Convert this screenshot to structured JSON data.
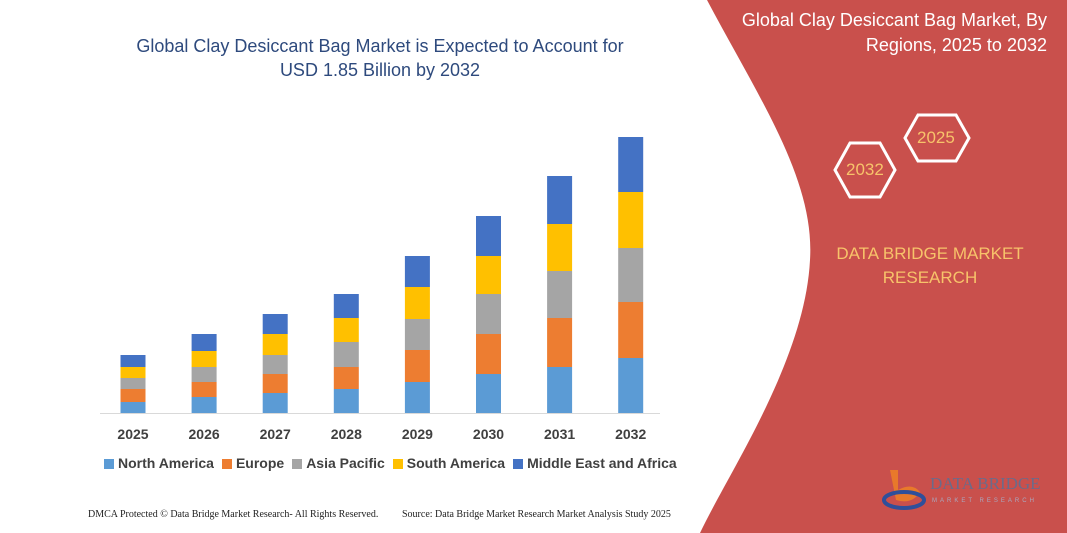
{
  "title": "Global Clay Desiccant Bag Market is Expected to Account for USD 1.85 Billion by 2032",
  "title_line1": "Global Clay Desiccant Bag Market is Expected to Account for",
  "title_line2": "USD 1.85 Billion by 2032",
  "side_panel": {
    "title_line1": "Global Clay Desiccant Bag Market, By",
    "title_line2": "Regions, 2025 to 2032",
    "hex_start": "2025",
    "hex_end": "2032",
    "brand_line1": "DATA BRIDGE MARKET",
    "brand_line2": "RESEARCH",
    "logo_text": "DATA BRIDGE",
    "logo_subtext": "MARKET RESEARCH",
    "panel_color": "#c9504c",
    "accent_color": "#f7c36a"
  },
  "footer": {
    "left": "DMCA Protected © Data Bridge Market Research-  All Rights Reserved.",
    "right": "Source: Data Bridge Market Research  Market Analysis Study 2025"
  },
  "chart_data": {
    "type": "bar",
    "stacked": true,
    "categories": [
      "2025",
      "2026",
      "2027",
      "2028",
      "2029",
      "2030",
      "2031",
      "2032"
    ],
    "series": [
      {
        "name": "North America",
        "color": "#5b9bd5",
        "values": [
          11,
          16,
          20,
          24,
          31,
          39,
          46,
          55
        ]
      },
      {
        "name": "Europe",
        "color": "#ed7d31",
        "values": [
          13,
          15,
          19,
          22,
          32,
          40,
          49,
          56
        ]
      },
      {
        "name": "Asia Pacific",
        "color": "#a5a5a5",
        "values": [
          11,
          15,
          19,
          25,
          31,
          40,
          47,
          54
        ]
      },
      {
        "name": "South America",
        "color": "#ffc000",
        "values": [
          11,
          16,
          21,
          24,
          32,
          38,
          47,
          56
        ]
      },
      {
        "name": "Middle East and Africa",
        "color": "#4472c4",
        "values": [
          12,
          17,
          20,
          24,
          31,
          40,
          48,
          55
        ]
      }
    ],
    "values_note_units": "relative",
    "legend_position": "bottom",
    "grid": false,
    "y_axis_visible": false
  }
}
